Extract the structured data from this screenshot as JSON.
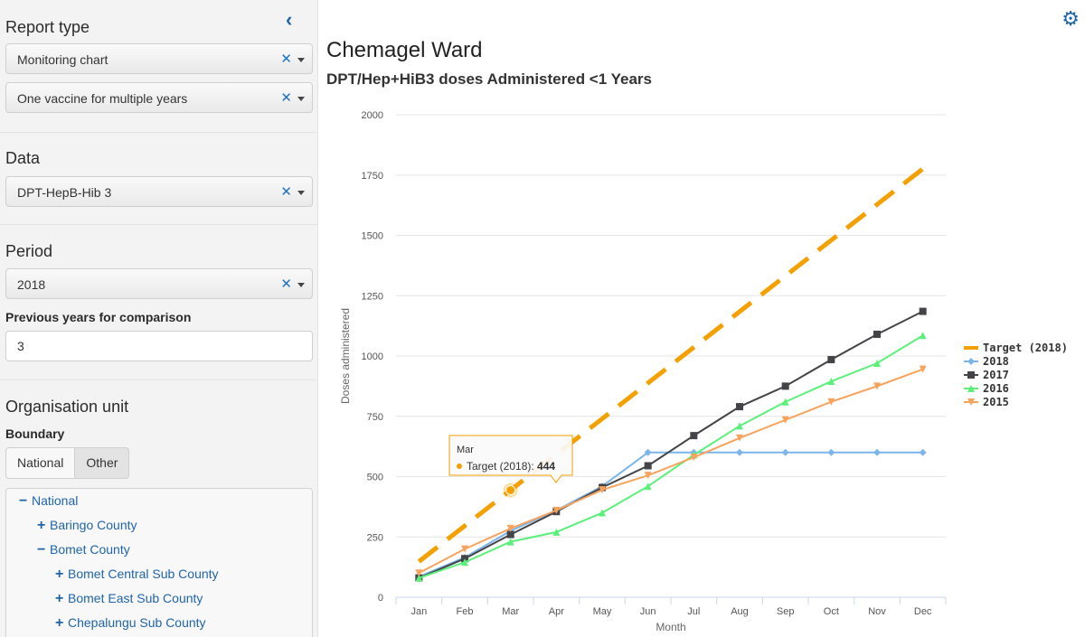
{
  "sidebar": {
    "report_type": {
      "title": "Report type",
      "chart_select": "Monitoring chart",
      "mode_select": "One vaccine for multiple years"
    },
    "data": {
      "title": "Data",
      "select": "DPT-HepB-Hib 3"
    },
    "period": {
      "title": "Period",
      "select": "2018",
      "prev_label": "Previous years for comparison",
      "prev_value": "3"
    },
    "org_unit": {
      "title": "Organisation unit",
      "boundary_label": "Boundary",
      "boundary_options": [
        "National",
        "Other"
      ],
      "boundary_selected": "Other",
      "tree": [
        {
          "label": "National",
          "toggle": "−"
        },
        {
          "label": "Baringo County",
          "toggle": "+"
        },
        {
          "label": "Bomet County",
          "toggle": "−"
        },
        {
          "label": "Bomet Central Sub County",
          "toggle": "+"
        },
        {
          "label": "Bomet East Sub County",
          "toggle": "+"
        },
        {
          "label": "Chepalungu Sub County",
          "toggle": "+"
        }
      ]
    },
    "icons": {
      "collapse": "chevron-left-icon",
      "clear": "close-icon",
      "caret": "caret-down-icon",
      "expand": "plus-icon",
      "collapse_node": "minus-icon"
    }
  },
  "header": {
    "title": "Chemagel Ward",
    "settings_icon": "gear-icon"
  },
  "tooltip": {
    "month": "Mar",
    "series": "Target (2018)",
    "value": "444"
  },
  "chart_data": {
    "type": "line",
    "title": "DPT/Hep+HiB3 doses Administered <1 Years",
    "xlabel": "Month",
    "ylabel": "Doses administered",
    "categories": [
      "Jan",
      "Feb",
      "Mar",
      "Apr",
      "May",
      "Jun",
      "Jul",
      "Aug",
      "Sep",
      "Oct",
      "Nov",
      "Dec"
    ],
    "ylim": [
      0,
      2000
    ],
    "yticks": [
      0,
      250,
      500,
      750,
      1000,
      1250,
      1500,
      1750,
      2000
    ],
    "grid": true,
    "legend_position": "right",
    "series": [
      {
        "name": "Target (2018)",
        "color": "#f4a000",
        "style": "dashed",
        "marker": "none",
        "values": [
          148,
          296,
          444,
          592,
          740,
          888,
          1036,
          1184,
          1332,
          1480,
          1628,
          1776
        ]
      },
      {
        "name": "2018",
        "color": "#7cb5ec",
        "style": "solid",
        "marker": "diamond",
        "values": [
          85,
          165,
          275,
          360,
          460,
          600,
          600,
          600,
          600,
          600,
          600,
          600
        ]
      },
      {
        "name": "2017",
        "color": "#434348",
        "style": "solid",
        "marker": "square",
        "values": [
          80,
          160,
          260,
          355,
          455,
          545,
          670,
          790,
          875,
          985,
          1090,
          1185
        ]
      },
      {
        "name": "2016",
        "color": "#5af07a",
        "style": "solid",
        "marker": "triangle",
        "values": [
          80,
          145,
          230,
          270,
          350,
          460,
          590,
          710,
          810,
          895,
          970,
          1085
        ]
      },
      {
        "name": "2015",
        "color": "#f7a35c",
        "style": "solid",
        "marker": "triangle-down",
        "values": [
          100,
          200,
          285,
          360,
          445,
          505,
          580,
          660,
          735,
          810,
          875,
          945
        ]
      }
    ]
  }
}
